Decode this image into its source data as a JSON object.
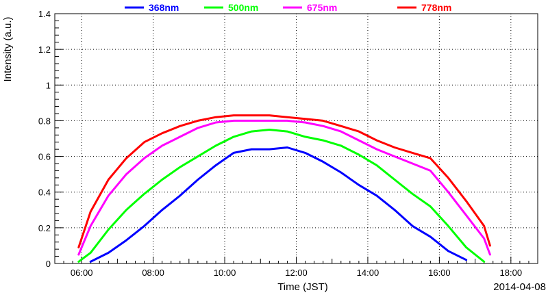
{
  "chart_data": {
    "type": "line",
    "xlabel": "Time (JST)",
    "ylabel": "Intensity (a.u.)",
    "date_label": "2014-04-08",
    "xlim": [
      "05:15",
      "18:45"
    ],
    "ylim": [
      0,
      1.4
    ],
    "x_ticks": [
      "06:00",
      "08:00",
      "10:00",
      "12:00",
      "14:00",
      "16:00",
      "18:00"
    ],
    "y_ticks": [
      "0",
      "0.2",
      "0.4",
      "0.6",
      "0.8",
      "1",
      "1.2",
      "1.4"
    ],
    "grid": true,
    "legend_position": "top",
    "x": [
      "05:55",
      "06:15",
      "06:45",
      "07:15",
      "07:45",
      "08:15",
      "08:45",
      "09:15",
      "09:45",
      "10:15",
      "10:45",
      "11:15",
      "11:45",
      "12:15",
      "12:45",
      "13:15",
      "13:45",
      "14:15",
      "14:45",
      "15:15",
      "15:45",
      "16:15",
      "16:45",
      "17:15",
      "17:25"
    ],
    "series": [
      {
        "name": "368nm",
        "color": "#0000ff",
        "values": [
          null,
          0.01,
          0.06,
          0.13,
          0.21,
          0.3,
          0.38,
          0.47,
          0.55,
          0.62,
          0.64,
          0.64,
          0.65,
          0.62,
          0.57,
          0.51,
          0.44,
          0.38,
          0.3,
          0.21,
          0.15,
          0.07,
          0.02,
          null,
          null
        ]
      },
      {
        "name": "500nm",
        "color": "#00ff00",
        "values": [
          0.01,
          0.06,
          0.19,
          0.3,
          0.39,
          0.47,
          0.54,
          0.6,
          0.66,
          0.71,
          0.74,
          0.75,
          0.74,
          0.71,
          0.69,
          0.66,
          0.61,
          0.55,
          0.47,
          0.39,
          0.32,
          0.21,
          0.09,
          0.01,
          null
        ]
      },
      {
        "name": "675nm",
        "color": "#ff00ff",
        "values": [
          0.05,
          0.21,
          0.38,
          0.5,
          0.59,
          0.66,
          0.71,
          0.76,
          0.79,
          0.8,
          0.8,
          0.8,
          0.8,
          0.79,
          0.77,
          0.74,
          0.69,
          0.64,
          0.6,
          0.56,
          0.52,
          0.4,
          0.27,
          0.14,
          0.05
        ]
      },
      {
        "name": "778nm",
        "color": "#ff0000",
        "values": [
          0.09,
          0.29,
          0.47,
          0.59,
          0.68,
          0.73,
          0.77,
          0.8,
          0.82,
          0.83,
          0.83,
          0.83,
          0.82,
          0.81,
          0.8,
          0.77,
          0.74,
          0.69,
          0.65,
          0.62,
          0.59,
          0.48,
          0.35,
          0.21,
          0.1
        ]
      }
    ]
  }
}
